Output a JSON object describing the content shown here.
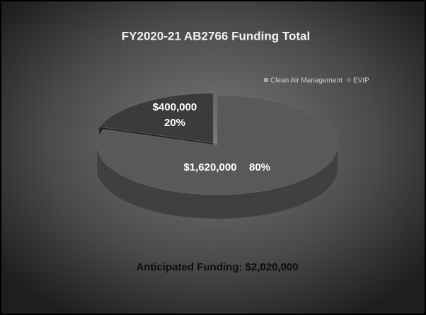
{
  "chart_data": {
    "type": "pie",
    "title": "FY2020-21 AB2766 Funding Total",
    "categories": [
      "Clean Air Management",
      "EVIP"
    ],
    "values": [
      1620000,
      400000
    ],
    "value_labels": [
      "$1,620,000",
      "$400,000"
    ],
    "percent_labels": [
      "80%",
      "20%"
    ],
    "colors": [
      "#595959",
      "#3b3b3b"
    ],
    "legend": "top-right",
    "annotation": "Anticipated Funding: $2,020,000"
  }
}
